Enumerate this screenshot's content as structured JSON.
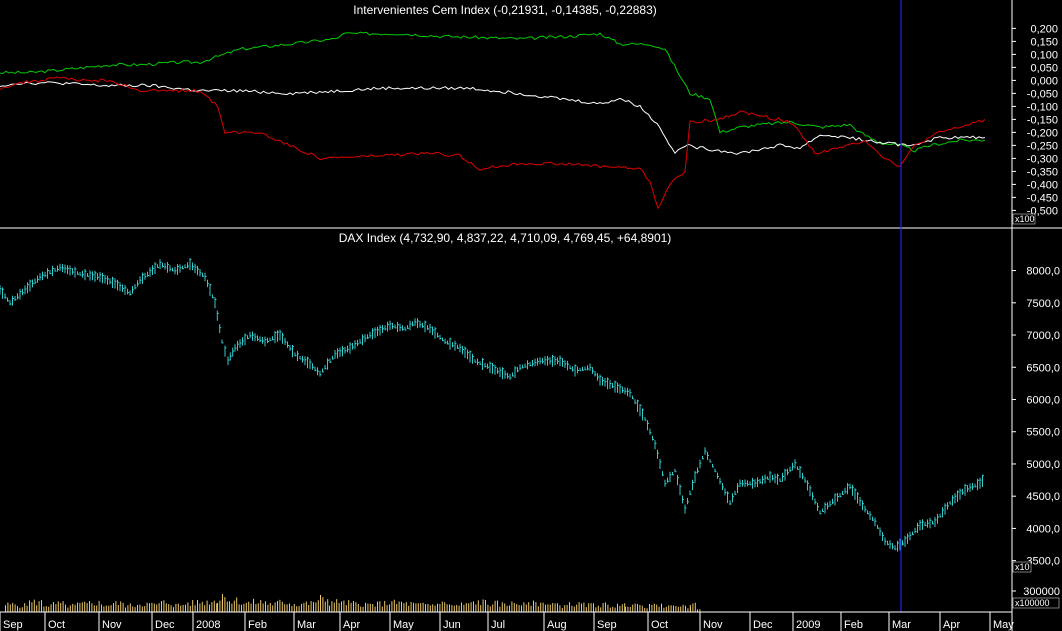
{
  "chart_data": [
    {
      "type": "line",
      "title": "Intervenientes Cem Index (-0,21931, -0,14385, -0,22883)",
      "y_ticks": [
        "0,200",
        "0,150",
        "0,100",
        "0,050",
        "0,000",
        "-0,050",
        "-0,100",
        "-0,150",
        "-0,200",
        "-0,250",
        "-0,300",
        "-0,350",
        "-0,400",
        "-0,450",
        "-0,500"
      ],
      "y_tick_values": [
        0.2,
        0.15,
        0.1,
        0.05,
        0,
        -0.05,
        -0.1,
        -0.15,
        -0.2,
        -0.25,
        -0.3,
        -0.35,
        -0.4,
        -0.45,
        -0.5
      ],
      "ylim": [
        -0.56,
        0.24
      ],
      "scale_label": "x100",
      "series": [
        {
          "color": "#00cc00",
          "points": [
            [
              0,
              0.03
            ],
            [
              30,
              0.03
            ],
            [
              60,
              0.04
            ],
            [
              110,
              0.06
            ],
            [
              140,
              0.06
            ],
            [
              180,
              0.07
            ],
            [
              200,
              0.07
            ],
            [
              240,
              0.12
            ],
            [
              290,
              0.14
            ],
            [
              335,
              0.16
            ],
            [
              345,
              0.18
            ],
            [
              400,
              0.18
            ],
            [
              440,
              0.17
            ],
            [
              520,
              0.16
            ],
            [
              570,
              0.17
            ],
            [
              600,
              0.18
            ],
            [
              620,
              0.14
            ],
            [
              650,
              0.14
            ],
            [
              665,
              0.12
            ],
            [
              690,
              -0.05
            ],
            [
              710,
              -0.07
            ],
            [
              720,
              -0.2
            ],
            [
              740,
              -0.18
            ],
            [
              760,
              -0.17
            ],
            [
              790,
              -0.16
            ],
            [
              820,
              -0.18
            ],
            [
              850,
              -0.17
            ],
            [
              860,
              -0.2
            ],
            [
              880,
              -0.24
            ],
            [
              900,
              -0.25
            ],
            [
              915,
              -0.27
            ],
            [
              930,
              -0.25
            ],
            [
              960,
              -0.23
            ],
            [
              985,
              -0.23
            ]
          ]
        },
        {
          "color": "#ffffff",
          "points": [
            [
              0,
              -0.02
            ],
            [
              20,
              -0.01
            ],
            [
              60,
              -0.01
            ],
            [
              100,
              -0.02
            ],
            [
              150,
              -0.02
            ],
            [
              200,
              -0.04
            ],
            [
              240,
              -0.04
            ],
            [
              290,
              -0.05
            ],
            [
              340,
              -0.04
            ],
            [
              380,
              -0.03
            ],
            [
              430,
              -0.03
            ],
            [
              470,
              -0.03
            ],
            [
              520,
              -0.05
            ],
            [
              560,
              -0.07
            ],
            [
              600,
              -0.09
            ],
            [
              620,
              -0.07
            ],
            [
              640,
              -0.1
            ],
            [
              660,
              -0.18
            ],
            [
              675,
              -0.28
            ],
            [
              685,
              -0.25
            ],
            [
              700,
              -0.26
            ],
            [
              740,
              -0.28
            ],
            [
              780,
              -0.25
            ],
            [
              800,
              -0.26
            ],
            [
              820,
              -0.21
            ],
            [
              850,
              -0.22
            ],
            [
              880,
              -0.24
            ],
            [
              910,
              -0.25
            ],
            [
              940,
              -0.22
            ],
            [
              985,
              -0.22
            ]
          ]
        },
        {
          "color": "#dd0000",
          "points": [
            [
              0,
              -0.03
            ],
            [
              20,
              -0.01
            ],
            [
              60,
              0.01
            ],
            [
              80,
              0
            ],
            [
              110,
              0
            ],
            [
              140,
              -0.04
            ],
            [
              200,
              -0.04
            ],
            [
              218,
              -0.1
            ],
            [
              225,
              -0.2
            ],
            [
              260,
              -0.2
            ],
            [
              290,
              -0.25
            ],
            [
              320,
              -0.3
            ],
            [
              380,
              -0.29
            ],
            [
              430,
              -0.28
            ],
            [
              460,
              -0.29
            ],
            [
              480,
              -0.34
            ],
            [
              520,
              -0.32
            ],
            [
              560,
              -0.32
            ],
            [
              600,
              -0.33
            ],
            [
              640,
              -0.34
            ],
            [
              650,
              -0.39
            ],
            [
              658,
              -0.49
            ],
            [
              670,
              -0.4
            ],
            [
              685,
              -0.35
            ],
            [
              690,
              -0.16
            ],
            [
              720,
              -0.15
            ],
            [
              740,
              -0.12
            ],
            [
              790,
              -0.16
            ],
            [
              800,
              -0.2
            ],
            [
              815,
              -0.28
            ],
            [
              840,
              -0.26
            ],
            [
              865,
              -0.23
            ],
            [
              885,
              -0.3
            ],
            [
              900,
              -0.33
            ],
            [
              915,
              -0.25
            ],
            [
              940,
              -0.2
            ],
            [
              960,
              -0.18
            ],
            [
              985,
              -0.15
            ]
          ]
        }
      ],
      "cursor_color": "#2222ee"
    },
    {
      "type": "line",
      "title": "DAX Index (4,732,90, 4,837,22, 4,710,09, 4,769,45, +64,8901)",
      "y_ticks": [
        "8000,0",
        "7500,0",
        "7000,0",
        "6500,0",
        "6000,0",
        "5500,0",
        "5000,0",
        "4500,0",
        "4000,0",
        "3500,0"
      ],
      "y_tick_values": [
        8000,
        7500,
        7000,
        6500,
        6000,
        5500,
        5000,
        4500,
        4000,
        3500
      ],
      "ylim": [
        3200,
        8350
      ],
      "scale_label": "x10",
      "series": [
        {
          "color": "#33cccc",
          "points": [
            [
              0,
              7700
            ],
            [
              10,
              7500
            ],
            [
              25,
              7700
            ],
            [
              40,
              7900
            ],
            [
              60,
              8050
            ],
            [
              80,
              7950
            ],
            [
              100,
              7900
            ],
            [
              115,
              7800
            ],
            [
              130,
              7650
            ],
            [
              140,
              7850
            ],
            [
              160,
              8100
            ],
            [
              175,
              8000
            ],
            [
              190,
              8100
            ],
            [
              205,
              7900
            ],
            [
              215,
              7500
            ],
            [
              222,
              6900
            ],
            [
              228,
              6600
            ],
            [
              235,
              6800
            ],
            [
              250,
              7000
            ],
            [
              265,
              6900
            ],
            [
              280,
              7000
            ],
            [
              295,
              6700
            ],
            [
              310,
              6550
            ],
            [
              320,
              6400
            ],
            [
              335,
              6700
            ],
            [
              350,
              6800
            ],
            [
              370,
              7000
            ],
            [
              390,
              7150
            ],
            [
              405,
              7100
            ],
            [
              415,
              7200
            ],
            [
              430,
              7100
            ],
            [
              445,
              6900
            ],
            [
              460,
              6800
            ],
            [
              475,
              6600
            ],
            [
              490,
              6500
            ],
            [
              510,
              6350
            ],
            [
              520,
              6500
            ],
            [
              540,
              6600
            ],
            [
              560,
              6600
            ],
            [
              575,
              6450
            ],
            [
              590,
              6500
            ],
            [
              600,
              6300
            ],
            [
              615,
              6200
            ],
            [
              630,
              6100
            ],
            [
              645,
              5700
            ],
            [
              655,
              5300
            ],
            [
              665,
              4700
            ],
            [
              675,
              4900
            ],
            [
              685,
              4300
            ],
            [
              695,
              4800
            ],
            [
              705,
              5200
            ],
            [
              715,
              4900
            ],
            [
              730,
              4400
            ],
            [
              740,
              4700
            ],
            [
              755,
              4700
            ],
            [
              770,
              4800
            ],
            [
              780,
              4750
            ],
            [
              795,
              5000
            ],
            [
              805,
              4750
            ],
            [
              820,
              4250
            ],
            [
              835,
              4450
            ],
            [
              850,
              4650
            ],
            [
              865,
              4300
            ],
            [
              875,
              4100
            ],
            [
              885,
              3800
            ],
            [
              895,
              3700
            ],
            [
              905,
              3800
            ],
            [
              920,
              4050
            ],
            [
              935,
              4100
            ],
            [
              950,
              4400
            ],
            [
              965,
              4600
            ],
            [
              980,
              4700
            ],
            [
              985,
              4780
            ]
          ]
        }
      ],
      "cursor_color": "#2222ee"
    },
    {
      "type": "bar",
      "scale_label": "x100000",
      "y_ticks": [
        "300000"
      ],
      "y_tick_values": [
        300000
      ],
      "ylim": [
        0,
        350000
      ],
      "color": "#e8c86a",
      "bars": [
        [
          5,
          0.45
        ],
        [
          17,
          0.4
        ],
        [
          29,
          0.6
        ],
        [
          41,
          0.42
        ],
        [
          53,
          0.5
        ],
        [
          65,
          0.38
        ],
        [
          77,
          0.48
        ],
        [
          89,
          0.55
        ],
        [
          101,
          0.44
        ],
        [
          113,
          0.52
        ],
        [
          125,
          0.4
        ],
        [
          137,
          0.5
        ],
        [
          149,
          0.46
        ],
        [
          161,
          0.58
        ],
        [
          173,
          0.42
        ],
        [
          185,
          0.54
        ],
        [
          197,
          0.6
        ],
        [
          209,
          0.66
        ],
        [
          217,
          0.8
        ],
        [
          222,
          1.0
        ],
        [
          229,
          0.7
        ],
        [
          241,
          0.55
        ],
        [
          253,
          0.6
        ],
        [
          265,
          0.5
        ],
        [
          277,
          0.58
        ],
        [
          289,
          0.48
        ],
        [
          301,
          0.52
        ],
        [
          313,
          0.62
        ],
        [
          320,
          0.8
        ],
        [
          329,
          0.6
        ],
        [
          341,
          0.55
        ],
        [
          353,
          0.5
        ],
        [
          365,
          0.46
        ],
        [
          377,
          0.52
        ],
        [
          389,
          0.56
        ],
        [
          401,
          0.5
        ],
        [
          413,
          0.44
        ],
        [
          425,
          0.46
        ],
        [
          437,
          0.52
        ],
        [
          449,
          0.4
        ],
        [
          461,
          0.48
        ],
        [
          473,
          0.6
        ],
        [
          485,
          0.52
        ],
        [
          497,
          0.46
        ],
        [
          509,
          0.5
        ],
        [
          521,
          0.44
        ],
        [
          533,
          0.52
        ],
        [
          545,
          0.48
        ],
        [
          557,
          0.4
        ],
        [
          569,
          0.46
        ],
        [
          581,
          0.42
        ],
        [
          593,
          0.44
        ],
        [
          605,
          0.38
        ],
        [
          617,
          0.4
        ],
        [
          625,
          0.48
        ],
        [
          637,
          0.36
        ],
        [
          649,
          0.38
        ],
        [
          661,
          0.34
        ],
        [
          673,
          0.36
        ],
        [
          685,
          0.32
        ],
        [
          690,
          0.44
        ],
        [
          697,
          0.22
        ]
      ]
    }
  ],
  "x_axis": {
    "labels": [
      "Sep",
      "Oct",
      "Nov",
      "Dec",
      "2008",
      "Feb",
      "Mar",
      "Apr",
      "May",
      "Jun",
      "Jul",
      "Aug",
      "Sep",
      "Oct",
      "Nov",
      "Dec",
      "2009",
      "Feb",
      "Mar",
      "Apr",
      "May"
    ]
  }
}
